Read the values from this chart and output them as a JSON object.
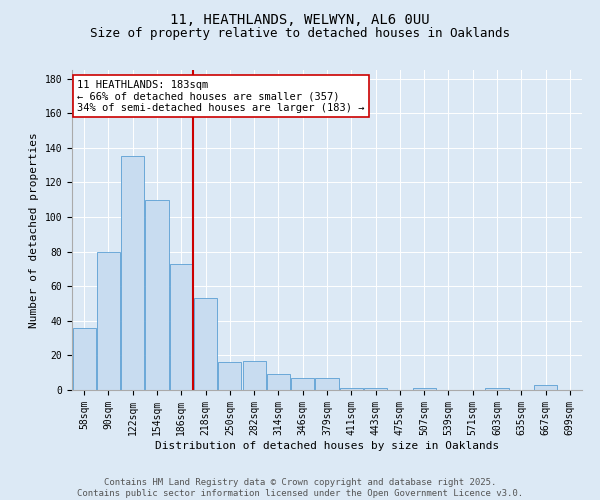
{
  "title_line1": "11, HEATHLANDS, WELWYN, AL6 0UU",
  "title_line2": "Size of property relative to detached houses in Oaklands",
  "xlabel": "Distribution of detached houses by size in Oaklands",
  "ylabel": "Number of detached properties",
  "categories": [
    "58sqm",
    "90sqm",
    "122sqm",
    "154sqm",
    "186sqm",
    "218sqm",
    "250sqm",
    "282sqm",
    "314sqm",
    "346sqm",
    "379sqm",
    "411sqm",
    "443sqm",
    "475sqm",
    "507sqm",
    "539sqm",
    "571sqm",
    "603sqm",
    "635sqm",
    "667sqm",
    "699sqm"
  ],
  "values": [
    36,
    80,
    135,
    110,
    73,
    53,
    16,
    17,
    9,
    7,
    7,
    1,
    1,
    0,
    1,
    0,
    0,
    1,
    0,
    3,
    0
  ],
  "bar_color": "#c8dcf0",
  "bar_edge_color": "#5a9fd4",
  "vline_x": 4.5,
  "vline_color": "#cc0000",
  "annotation_text": "11 HEATHLANDS: 183sqm\n← 66% of detached houses are smaller (357)\n34% of semi-detached houses are larger (183) →",
  "annotation_box_color": "#ffffff",
  "annotation_box_edge": "#cc0000",
  "ylim": [
    0,
    185
  ],
  "yticks": [
    0,
    20,
    40,
    60,
    80,
    100,
    120,
    140,
    160,
    180
  ],
  "background_color": "#dce9f5",
  "plot_background": "#dce9f5",
  "footer_line1": "Contains HM Land Registry data © Crown copyright and database right 2025.",
  "footer_line2": "Contains public sector information licensed under the Open Government Licence v3.0.",
  "title_fontsize": 10,
  "subtitle_fontsize": 9,
  "axis_label_fontsize": 8,
  "tick_fontsize": 7,
  "annotation_fontsize": 7.5,
  "footer_fontsize": 6.5
}
